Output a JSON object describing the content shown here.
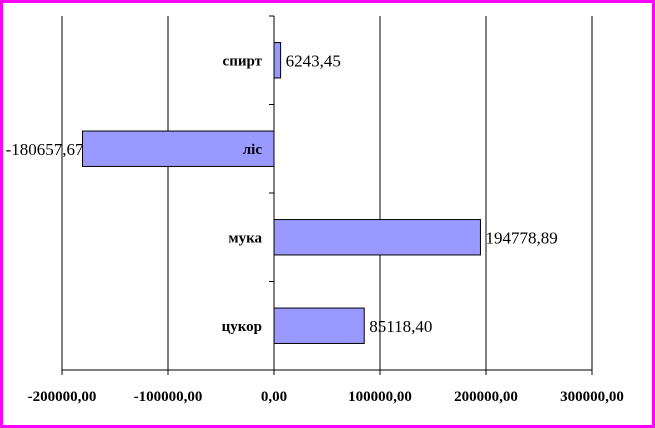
{
  "chart_data": {
    "type": "bar",
    "orientation": "horizontal",
    "categories": [
      "спирт",
      "ліс",
      "мука",
      "цукор"
    ],
    "values": [
      6243.45,
      -180657.67,
      194778.89,
      85118.4
    ],
    "value_labels": [
      "6243,45",
      "-180657,67",
      "194778,89",
      "85118,40"
    ],
    "xlim": [
      -200000,
      300000
    ],
    "x_ticks": [
      -200000,
      -100000,
      0,
      100000,
      200000,
      300000
    ],
    "x_tick_labels": [
      "-200000,00",
      "-100000,00",
      "0,00",
      "100000,00",
      "200000,00",
      "300000,00"
    ],
    "grid": true,
    "legend": "none",
    "title": "",
    "xlabel": "",
    "ylabel": ""
  },
  "colors": {
    "frame": "#ff00ff",
    "bar_fill": "#9999ff",
    "bar_stroke": "#000000",
    "grid": "#000000"
  }
}
